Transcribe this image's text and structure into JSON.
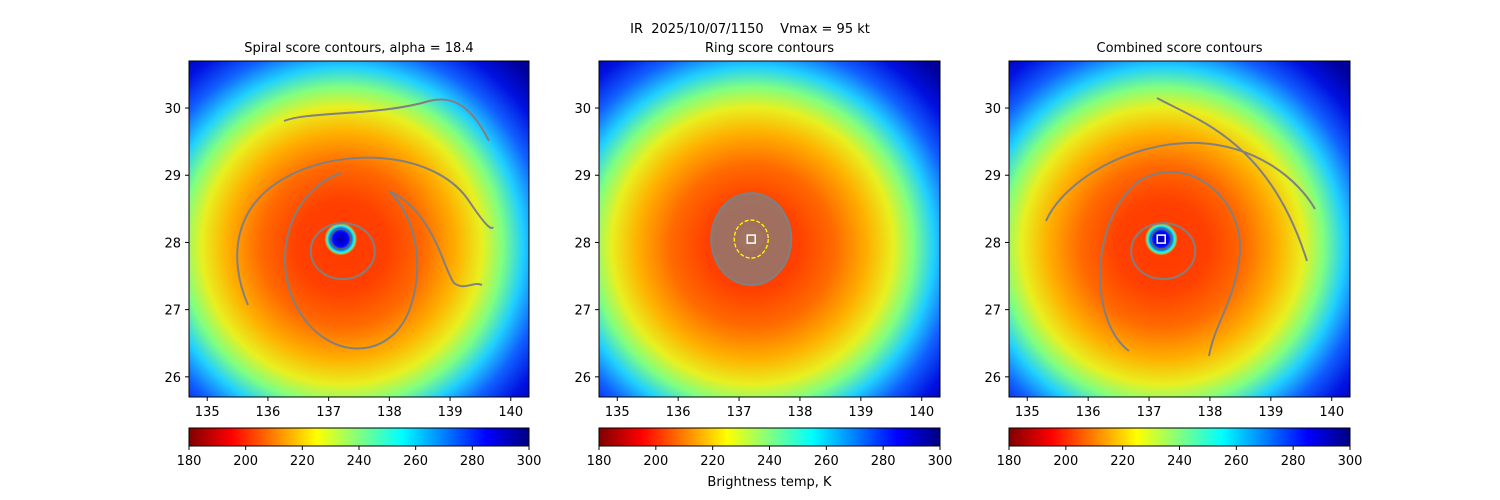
{
  "suptitle": "IR  2025/10/07/1150    Vmax = 95 kt",
  "colorbar_label": "Brightness temp, K",
  "colormap": [
    "#800000",
    "#ff0000",
    "#ff8000",
    "#ffff00",
    "#80ff80",
    "#00ffff",
    "#0080ff",
    "#0000ff",
    "#000080"
  ],
  "contour_color": "#808080",
  "ring_marker_color": "#ffff00",
  "center_marker_color": "#ffffff",
  "chart_data": [
    {
      "type": "heatmap",
      "title": "Spiral score contours, alpha = 18.4",
      "xlim": [
        134.7,
        140.3
      ],
      "ylim": [
        25.7,
        30.7
      ],
      "xticks": [
        "135",
        "136",
        "137",
        "138",
        "139",
        "140"
      ],
      "yticks": [
        "26",
        "27",
        "28",
        "29",
        "30"
      ],
      "center": [
        137.2,
        28.05
      ],
      "colorbar": {
        "range": [
          180,
          300
        ],
        "ticks": [
          "180",
          "200",
          "220",
          "240",
          "260",
          "280",
          "300"
        ]
      },
      "contours": [
        "spiral-outer",
        "spiral-middle",
        "spiral-inner",
        "eye-ring"
      ],
      "has_center_marker": false
    },
    {
      "type": "heatmap",
      "title": "Ring score contours",
      "xlim": [
        134.7,
        140.3
      ],
      "ylim": [
        25.7,
        30.7
      ],
      "xticks": [
        "135",
        "136",
        "137",
        "138",
        "139",
        "140"
      ],
      "yticks": [
        "26",
        "27",
        "28",
        "29",
        "30"
      ],
      "center": [
        137.2,
        28.05
      ],
      "colorbar": {
        "range": [
          180,
          300
        ],
        "ticks": [
          "180",
          "200",
          "220",
          "240",
          "260",
          "280",
          "300"
        ]
      },
      "contours": [
        "ring-cluster"
      ],
      "has_center_marker": true
    },
    {
      "type": "heatmap",
      "title": "Combined score contours",
      "xlim": [
        134.7,
        140.3
      ],
      "ylim": [
        25.7,
        30.7
      ],
      "xticks": [
        "135",
        "136",
        "137",
        "138",
        "139",
        "140"
      ],
      "yticks": [
        "26",
        "27",
        "28",
        "29",
        "30"
      ],
      "center": [
        137.2,
        28.05
      ],
      "colorbar": {
        "range": [
          180,
          300
        ],
        "ticks": [
          "180",
          "200",
          "220",
          "240",
          "260",
          "280",
          "300"
        ]
      },
      "contours": [
        "spiral-outer",
        "spiral-middle",
        "spiral-inner",
        "eye-ring"
      ],
      "has_center_marker": true
    }
  ]
}
